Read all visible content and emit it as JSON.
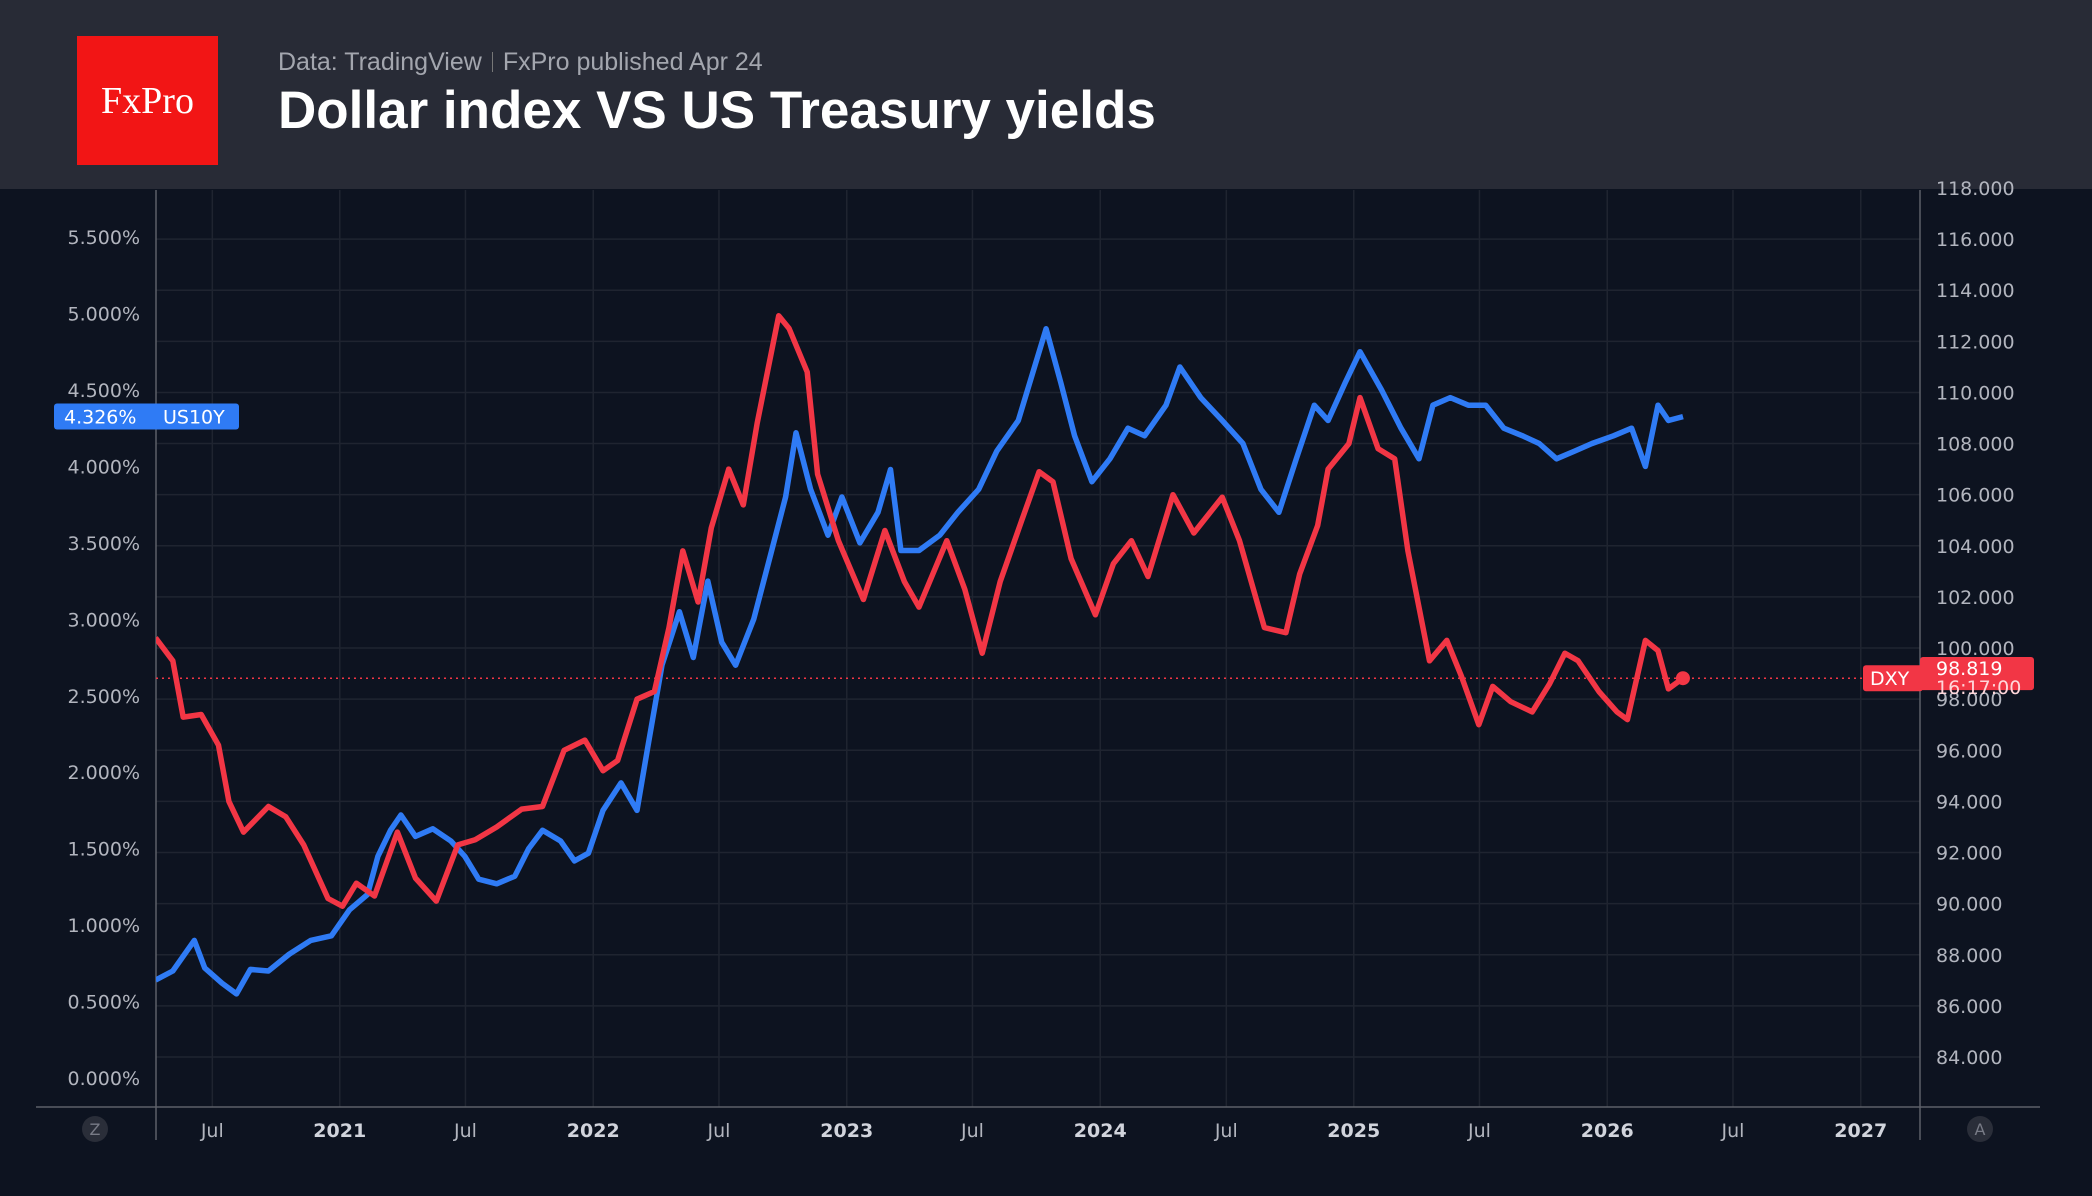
{
  "header": {
    "logo_text": "FxPro",
    "source": "Data: TradingView",
    "publisher": "FxPro published Apr 24",
    "title": "Dollar index VS US Treasury yields"
  },
  "colors": {
    "us10y": "#2f7bf5",
    "dxy": "#f23645",
    "background": "#0d1320",
    "header": "#282b36"
  },
  "corner_buttons": {
    "left": "Z",
    "right": "A"
  },
  "chart_data": {
    "type": "line",
    "x_ticks": [
      {
        "date": "2020-07-01",
        "label": "Jul",
        "major": false
      },
      {
        "date": "2021-01-01",
        "label": "2021",
        "major": true
      },
      {
        "date": "2021-07-01",
        "label": "Jul",
        "major": false
      },
      {
        "date": "2022-01-01",
        "label": "2022",
        "major": true
      },
      {
        "date": "2022-07-01",
        "label": "Jul",
        "major": false
      },
      {
        "date": "2023-01-01",
        "label": "2023",
        "major": true
      },
      {
        "date": "2023-07-01",
        "label": "Jul",
        "major": false
      },
      {
        "date": "2024-01-01",
        "label": "2024",
        "major": true
      },
      {
        "date": "2024-07-01",
        "label": "Jul",
        "major": false
      },
      {
        "date": "2025-01-01",
        "label": "2025",
        "major": true
      },
      {
        "date": "2025-07-01",
        "label": "Jul",
        "major": false
      },
      {
        "date": "2026-01-01",
        "label": "2026",
        "major": true
      },
      {
        "date": "2026-07-01",
        "label": "Jul",
        "major": false
      },
      {
        "date": "2027-01-01",
        "label": "2027",
        "major": true
      }
    ],
    "left_axis": {
      "ticks": [
        "0.000%",
        "0.500%",
        "1.000%",
        "1.500%",
        "2.000%",
        "2.500%",
        "3.000%",
        "3.500%",
        "4.000%",
        "4.500%",
        "5.000%",
        "5.500%"
      ],
      "values": [
        0,
        0.5,
        1,
        1.5,
        2,
        2.5,
        3,
        3.5,
        4,
        4.5,
        5,
        5.5
      ]
    },
    "right_axis": {
      "ticks": [
        "84.000",
        "86.000",
        "88.000",
        "90.000",
        "92.000",
        "94.000",
        "96.000",
        "98.000",
        "100.000",
        "102.000",
        "104.000",
        "106.000",
        "108.000",
        "110.000",
        "112.000",
        "114.000",
        "116.000",
        "118.000"
      ],
      "values": [
        84,
        86,
        88,
        90,
        92,
        94,
        96,
        98,
        100,
        102,
        104,
        106,
        108,
        110,
        112,
        114,
        116,
        118
      ]
    },
    "grid": true,
    "series": [
      {
        "name": "US10Y",
        "axis": "left",
        "last_label": "4.326%",
        "points": [
          [
            "2020-04-10",
            0.64
          ],
          [
            "2020-05-05",
            0.7
          ],
          [
            "2020-06-05",
            0.9
          ],
          [
            "2020-06-20",
            0.72
          ],
          [
            "2020-07-15",
            0.62
          ],
          [
            "2020-08-05",
            0.55
          ],
          [
            "2020-08-25",
            0.71
          ],
          [
            "2020-09-20",
            0.7
          ],
          [
            "2020-10-20",
            0.81
          ],
          [
            "2020-11-20",
            0.9
          ],
          [
            "2020-12-20",
            0.93
          ],
          [
            "2021-01-15",
            1.1
          ],
          [
            "2021-02-10",
            1.2
          ],
          [
            "2021-02-25",
            1.45
          ],
          [
            "2021-03-15",
            1.62
          ],
          [
            "2021-03-30",
            1.72
          ],
          [
            "2021-04-20",
            1.58
          ],
          [
            "2021-05-15",
            1.63
          ],
          [
            "2021-06-10",
            1.55
          ],
          [
            "2021-06-30",
            1.45
          ],
          [
            "2021-07-20",
            1.3
          ],
          [
            "2021-08-15",
            1.27
          ],
          [
            "2021-09-10",
            1.32
          ],
          [
            "2021-09-30",
            1.5
          ],
          [
            "2021-10-20",
            1.62
          ],
          [
            "2021-11-15",
            1.55
          ],
          [
            "2021-12-05",
            1.42
          ],
          [
            "2021-12-25",
            1.47
          ],
          [
            "2022-01-15",
            1.75
          ],
          [
            "2022-02-10",
            1.93
          ],
          [
            "2022-03-05",
            1.75
          ],
          [
            "2022-03-20",
            2.15
          ],
          [
            "2022-04-10",
            2.7
          ],
          [
            "2022-05-05",
            3.05
          ],
          [
            "2022-05-25",
            2.75
          ],
          [
            "2022-06-15",
            3.25
          ],
          [
            "2022-07-05",
            2.85
          ],
          [
            "2022-07-25",
            2.7
          ],
          [
            "2022-08-20",
            3.0
          ],
          [
            "2022-09-15",
            3.45
          ],
          [
            "2022-10-05",
            3.8
          ],
          [
            "2022-10-20",
            4.22
          ],
          [
            "2022-11-10",
            3.85
          ],
          [
            "2022-12-05",
            3.55
          ],
          [
            "2022-12-25",
            3.8
          ],
          [
            "2023-01-20",
            3.5
          ],
          [
            "2023-02-15",
            3.7
          ],
          [
            "2023-03-05",
            3.98
          ],
          [
            "2023-03-20",
            3.45
          ],
          [
            "2023-04-15",
            3.45
          ],
          [
            "2023-05-15",
            3.55
          ],
          [
            "2023-06-10",
            3.7
          ],
          [
            "2023-07-10",
            3.85
          ],
          [
            "2023-08-05",
            4.1
          ],
          [
            "2023-09-05",
            4.3
          ],
          [
            "2023-10-15",
            4.9
          ],
          [
            "2023-11-05",
            4.55
          ],
          [
            "2023-11-25",
            4.2
          ],
          [
            "2023-12-20",
            3.9
          ],
          [
            "2024-01-15",
            4.05
          ],
          [
            "2024-02-10",
            4.25
          ],
          [
            "2024-03-05",
            4.2
          ],
          [
            "2024-04-05",
            4.4
          ],
          [
            "2024-04-25",
            4.65
          ],
          [
            "2024-05-25",
            4.45
          ],
          [
            "2024-06-25",
            4.3
          ],
          [
            "2024-07-25",
            4.15
          ],
          [
            "2024-08-20",
            3.85
          ],
          [
            "2024-09-15",
            3.7
          ],
          [
            "2024-10-10",
            4.05
          ],
          [
            "2024-11-05",
            4.4
          ],
          [
            "2024-11-25",
            4.3
          ],
          [
            "2024-12-20",
            4.55
          ],
          [
            "2025-01-10",
            4.75
          ],
          [
            "2025-02-10",
            4.5
          ],
          [
            "2025-03-10",
            4.25
          ],
          [
            "2025-04-05",
            4.05
          ],
          [
            "2025-04-25",
            4.4
          ],
          [
            "2025-05-20",
            4.45
          ],
          [
            "2025-06-15",
            4.4
          ],
          [
            "2025-07-10",
            4.4
          ],
          [
            "2025-08-05",
            4.25
          ],
          [
            "2025-09-01",
            4.2
          ],
          [
            "2025-09-25",
            4.15
          ],
          [
            "2025-10-20",
            4.05
          ],
          [
            "2025-11-15",
            4.1
          ],
          [
            "2025-12-10",
            4.15
          ],
          [
            "2026-01-10",
            4.2
          ],
          [
            "2026-02-05",
            4.25
          ],
          [
            "2026-02-25",
            4.0
          ],
          [
            "2026-03-15",
            4.4
          ],
          [
            "2026-03-30",
            4.3
          ],
          [
            "2026-04-20",
            4.326
          ]
        ]
      },
      {
        "name": "DXY",
        "axis": "right",
        "last_label": "98.819",
        "time_label": "16:17:00",
        "points": [
          [
            "2020-04-10",
            100.4
          ],
          [
            "2020-05-05",
            99.5
          ],
          [
            "2020-05-20",
            97.3
          ],
          [
            "2020-06-15",
            97.4
          ],
          [
            "2020-07-10",
            96.2
          ],
          [
            "2020-07-25",
            94.0
          ],
          [
            "2020-08-15",
            92.8
          ],
          [
            "2020-09-20",
            93.8
          ],
          [
            "2020-10-15",
            93.4
          ],
          [
            "2020-11-10",
            92.3
          ],
          [
            "2020-12-15",
            90.2
          ],
          [
            "2021-01-05",
            89.9
          ],
          [
            "2021-01-25",
            90.8
          ],
          [
            "2021-02-20",
            90.3
          ],
          [
            "2021-03-25",
            92.8
          ],
          [
            "2021-04-20",
            91.0
          ],
          [
            "2021-05-20",
            90.1
          ],
          [
            "2021-06-20",
            92.3
          ],
          [
            "2021-07-15",
            92.5
          ],
          [
            "2021-08-15",
            93.0
          ],
          [
            "2021-09-20",
            93.7
          ],
          [
            "2021-10-20",
            93.8
          ],
          [
            "2021-11-20",
            96.0
          ],
          [
            "2021-12-20",
            96.4
          ],
          [
            "2022-01-15",
            95.2
          ],
          [
            "2022-02-05",
            95.6
          ],
          [
            "2022-03-05",
            98.0
          ],
          [
            "2022-03-30",
            98.3
          ],
          [
            "2022-04-20",
            100.8
          ],
          [
            "2022-05-10",
            103.8
          ],
          [
            "2022-06-01",
            101.8
          ],
          [
            "2022-06-20",
            104.7
          ],
          [
            "2022-07-15",
            107.0
          ],
          [
            "2022-08-05",
            105.6
          ],
          [
            "2022-08-25",
            108.8
          ],
          [
            "2022-09-25",
            113.0
          ],
          [
            "2022-10-10",
            112.5
          ],
          [
            "2022-11-05",
            110.8
          ],
          [
            "2022-11-20",
            106.8
          ],
          [
            "2022-12-20",
            104.2
          ],
          [
            "2023-01-25",
            101.9
          ],
          [
            "2023-02-25",
            104.6
          ],
          [
            "2023-03-25",
            102.6
          ],
          [
            "2023-04-15",
            101.6
          ],
          [
            "2023-05-25",
            104.2
          ],
          [
            "2023-06-20",
            102.3
          ],
          [
            "2023-07-15",
            99.8
          ],
          [
            "2023-08-10",
            102.6
          ],
          [
            "2023-09-10",
            105.0
          ],
          [
            "2023-10-05",
            106.9
          ],
          [
            "2023-10-25",
            106.5
          ],
          [
            "2023-11-20",
            103.5
          ],
          [
            "2023-12-25",
            101.3
          ],
          [
            "2024-01-20",
            103.3
          ],
          [
            "2024-02-15",
            104.2
          ],
          [
            "2024-03-10",
            102.8
          ],
          [
            "2024-04-15",
            106.0
          ],
          [
            "2024-05-15",
            104.5
          ],
          [
            "2024-06-25",
            105.9
          ],
          [
            "2024-07-20",
            104.2
          ],
          [
            "2024-08-25",
            100.8
          ],
          [
            "2024-09-25",
            100.6
          ],
          [
            "2024-10-15",
            102.9
          ],
          [
            "2024-11-10",
            104.8
          ],
          [
            "2024-11-25",
            107.0
          ],
          [
            "2024-12-25",
            108.0
          ],
          [
            "2025-01-10",
            109.8
          ],
          [
            "2025-02-05",
            107.8
          ],
          [
            "2025-03-01",
            107.4
          ],
          [
            "2025-03-20",
            103.8
          ],
          [
            "2025-04-20",
            99.5
          ],
          [
            "2025-05-15",
            100.3
          ],
          [
            "2025-06-05",
            98.9
          ],
          [
            "2025-06-30",
            97.0
          ],
          [
            "2025-07-20",
            98.5
          ],
          [
            "2025-08-15",
            97.9
          ],
          [
            "2025-09-15",
            97.5
          ],
          [
            "2025-10-10",
            98.6
          ],
          [
            "2025-11-01",
            99.8
          ],
          [
            "2025-11-20",
            99.5
          ],
          [
            "2025-12-20",
            98.3
          ],
          [
            "2026-01-15",
            97.5
          ],
          [
            "2026-01-30",
            97.2
          ],
          [
            "2026-02-25",
            100.3
          ],
          [
            "2026-03-15",
            99.9
          ],
          [
            "2026-03-30",
            98.4
          ],
          [
            "2026-04-20",
            98.819
          ]
        ]
      }
    ]
  }
}
